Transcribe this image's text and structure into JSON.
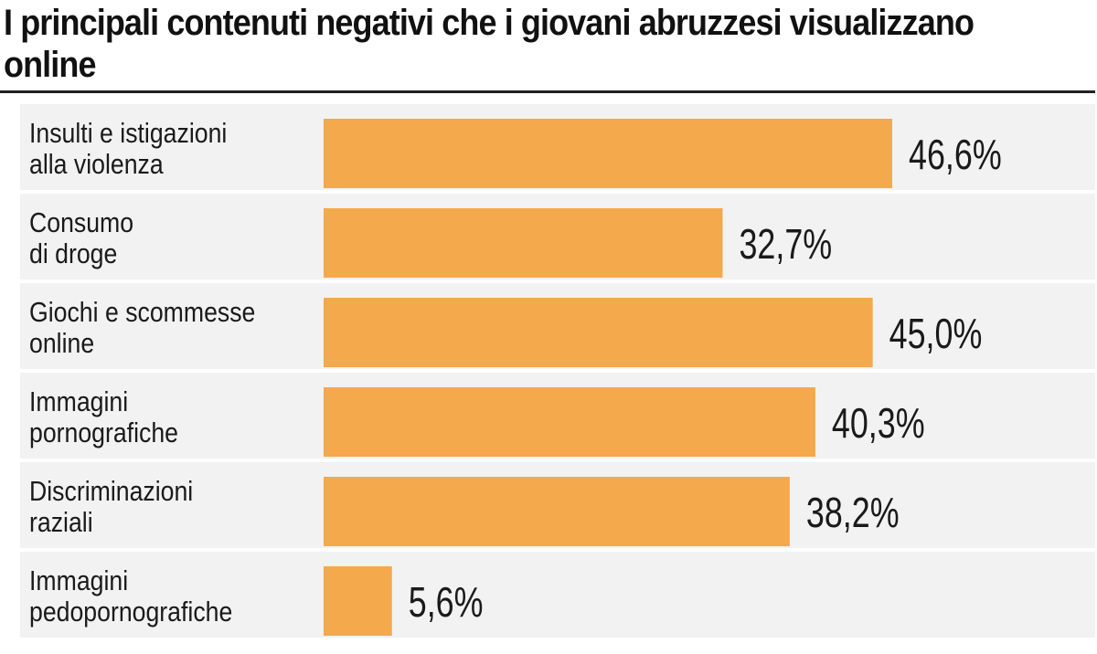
{
  "chart_data": {
    "type": "bar",
    "orientation": "horizontal",
    "title": "I principali contenuti negativi che i giovani abruzzesi visualizzano online",
    "categories": [
      [
        "Insulti e istigazioni",
        "alla violenza"
      ],
      [
        "Consumo",
        "di droge"
      ],
      [
        "Giochi e scommesse",
        "online"
      ],
      [
        "Immagini",
        "pornografiche"
      ],
      [
        "Discriminazioni",
        "raziali"
      ],
      [
        "Immagini",
        "pedopornografiche"
      ]
    ],
    "values": [
      46.6,
      32.7,
      45.0,
      40.3,
      38.2,
      5.6
    ],
    "value_labels": [
      "46,6%",
      "32,7%",
      "45,0%",
      "40,3%",
      "38,2%",
      "5,6%"
    ],
    "unit": "%",
    "xlim": [
      0,
      50
    ],
    "bar_color": "#f3a94c",
    "row_background": "#f2f2f2",
    "grid": false,
    "legend": "none"
  }
}
